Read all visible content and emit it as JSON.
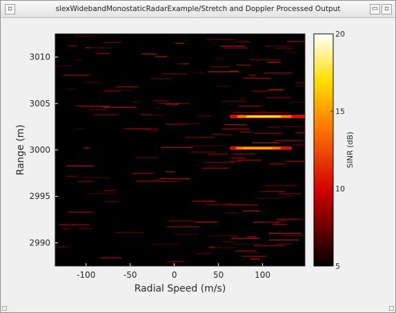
{
  "window": {
    "title": "slexWidebandMonostaticRadarExample/Stretch and Doppler Processed Output"
  },
  "chart_data": {
    "type": "heatmap",
    "title": "",
    "xlabel": "Radial Speed (m/s)",
    "ylabel": "Range (m)",
    "xlim": [
      -135,
      148
    ],
    "ylim": [
      2987.5,
      3012.5
    ],
    "xticks": [
      -100,
      -50,
      0,
      50,
      100
    ],
    "yticks": [
      2990,
      2995,
      3000,
      3005,
      3010
    ],
    "colorbar": {
      "label": "SINR (dB)",
      "min": 5,
      "max": 20,
      "ticks": [
        5,
        10,
        15,
        20
      ]
    },
    "colormap": "hot",
    "targets": [
      {
        "range": 3003.6,
        "speed_from": 63,
        "speed_to": 148,
        "peak_sinr": 19
      },
      {
        "range": 3000.2,
        "speed_from": 63,
        "speed_to": 133,
        "peak_sinr": 17
      }
    ]
  }
}
